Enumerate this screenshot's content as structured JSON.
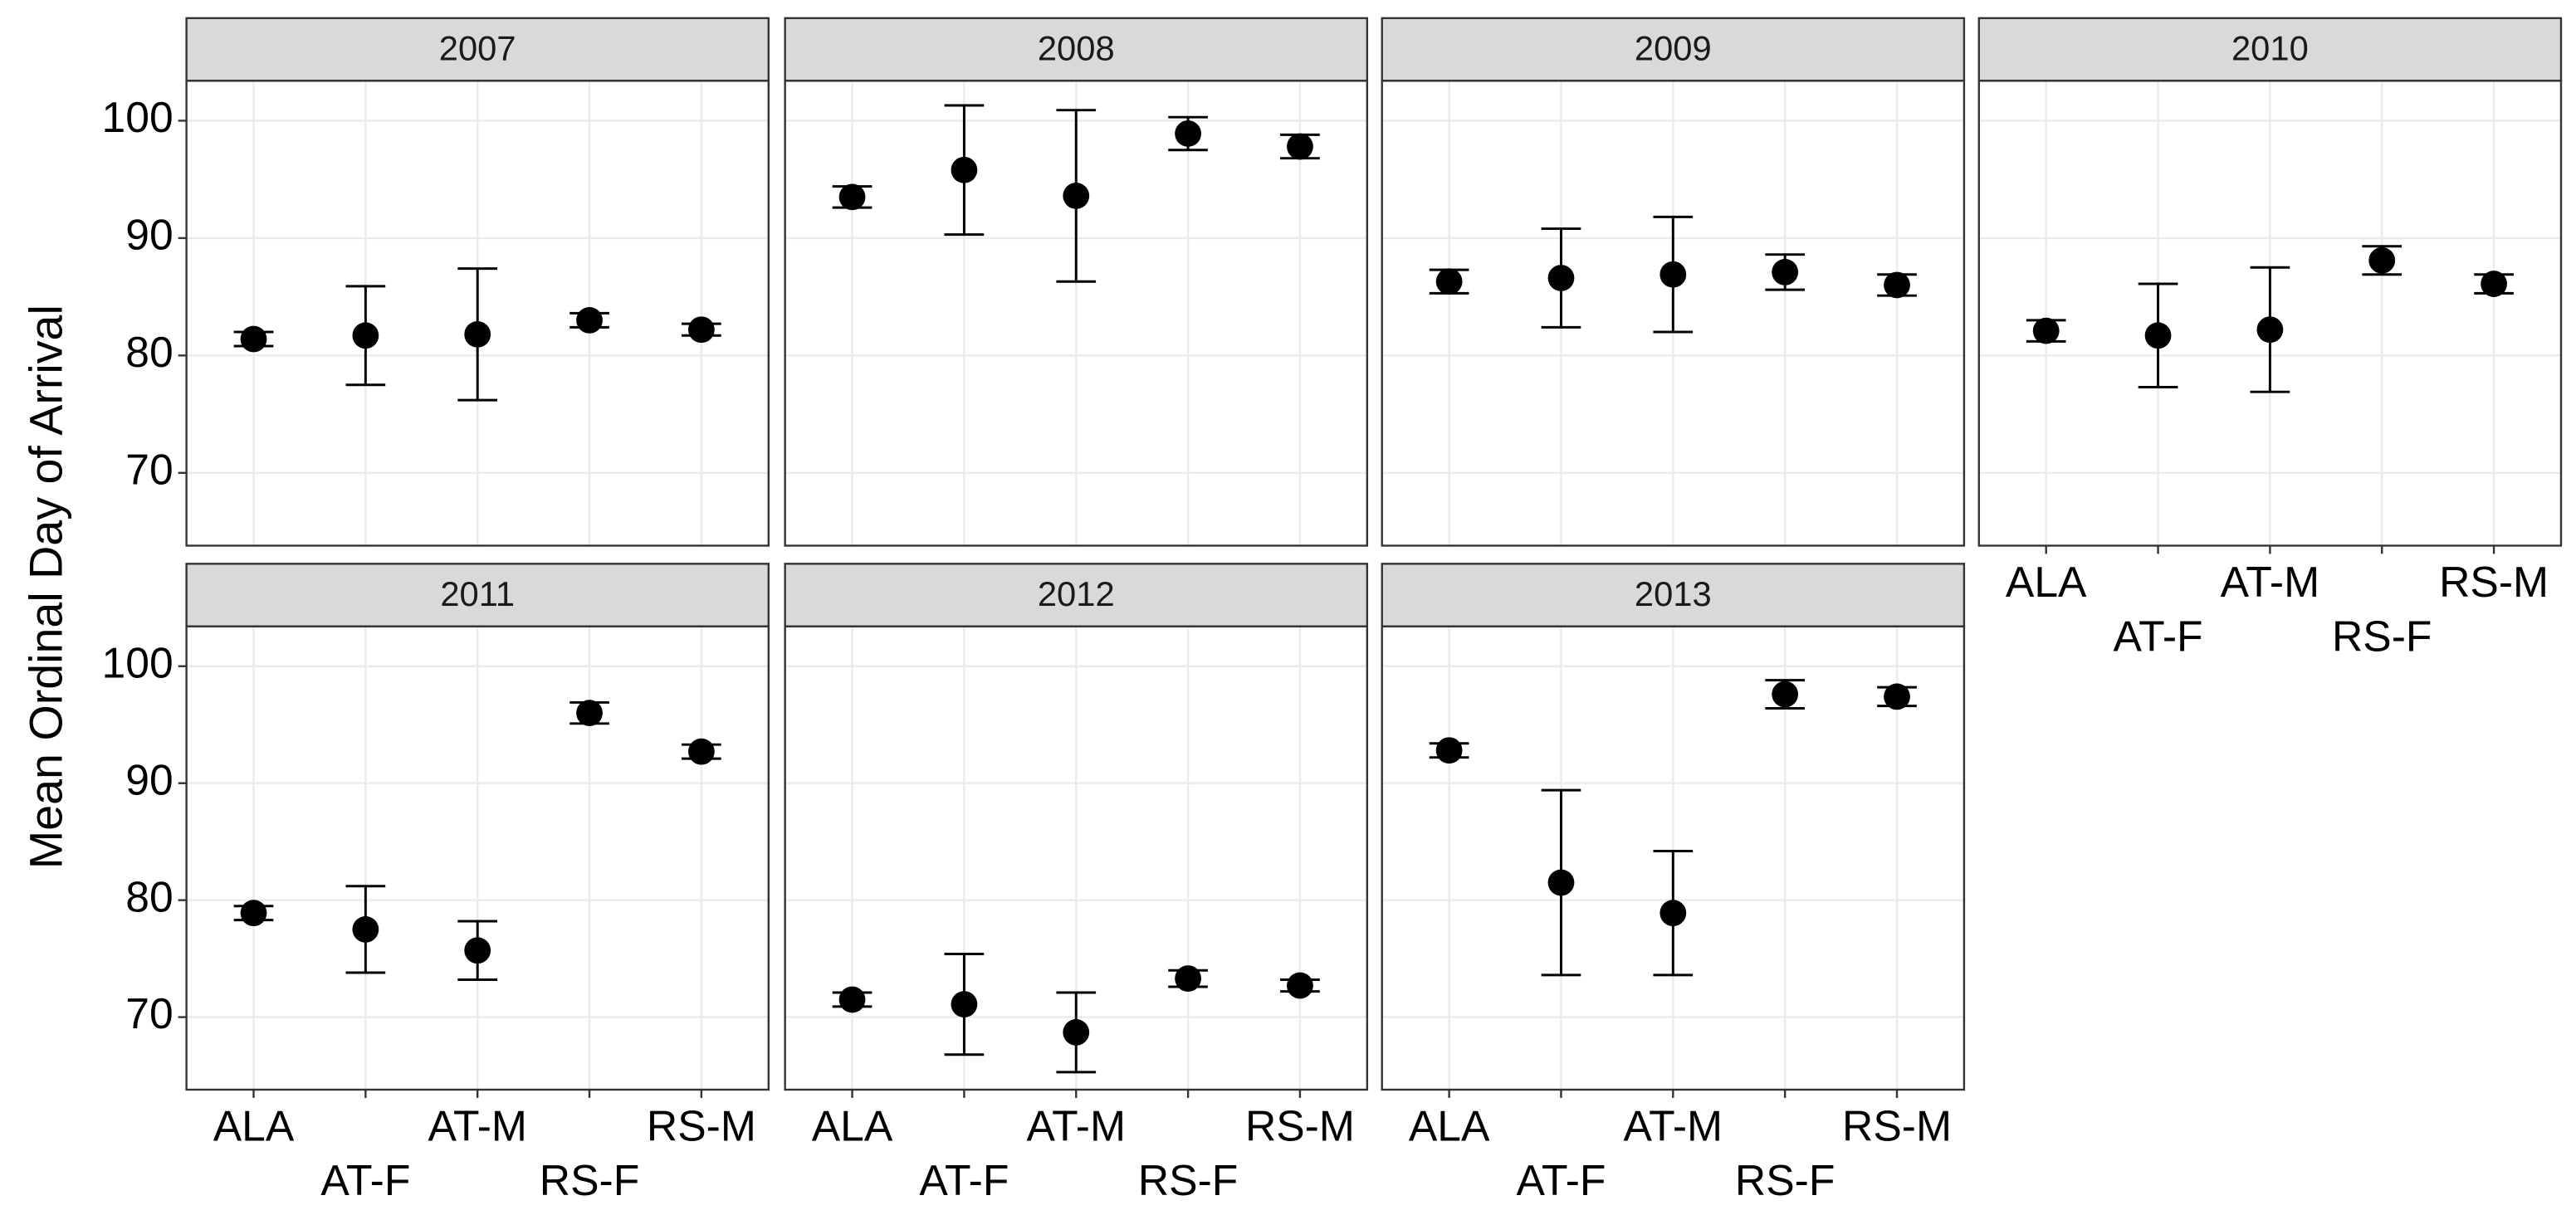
{
  "ylabel": "Mean Ordinal Day of Arrival",
  "chart_data": [
    {
      "type": "scatter",
      "title": "2007",
      "categories": [
        "ALA",
        "AT-F",
        "AT-M",
        "RS-F",
        "RS-M"
      ],
      "values": [
        81.4,
        81.7,
        81.8,
        83.0,
        82.2
      ],
      "errors": [
        0.6,
        4.2,
        5.6,
        0.6,
        0.5
      ],
      "ylim": [
        63.8,
        103.4
      ],
      "yticks": [
        70,
        80,
        90,
        100
      ],
      "color": "#000000",
      "grid": true
    },
    {
      "type": "scatter",
      "title": "2008",
      "categories": [
        "ALA",
        "AT-F",
        "AT-M",
        "RS-F",
        "RS-M"
      ],
      "values": [
        93.5,
        95.8,
        93.6,
        98.9,
        97.8
      ],
      "errors": [
        0.9,
        5.5,
        7.3,
        1.4,
        1.0
      ],
      "ylim": [
        63.8,
        103.4
      ],
      "yticks": [
        70,
        80,
        90,
        100
      ],
      "color": "#000000",
      "grid": true
    },
    {
      "type": "scatter",
      "title": "2009",
      "categories": [
        "ALA",
        "AT-F",
        "AT-M",
        "RS-F",
        "RS-M"
      ],
      "values": [
        86.3,
        86.6,
        86.9,
        87.1,
        86.0
      ],
      "errors": [
        1.0,
        4.2,
        4.9,
        1.5,
        0.9
      ],
      "ylim": [
        63.8,
        103.4
      ],
      "yticks": [
        70,
        80,
        90,
        100
      ],
      "color": "#000000",
      "grid": true
    },
    {
      "type": "scatter",
      "title": "2010",
      "categories": [
        "ALA",
        "AT-F",
        "AT-M",
        "RS-F",
        "RS-M"
      ],
      "values": [
        82.1,
        81.7,
        82.2,
        88.1,
        86.1
      ],
      "errors": [
        0.9,
        4.4,
        5.3,
        1.2,
        0.8
      ],
      "ylim": [
        63.8,
        103.4
      ],
      "yticks": [
        70,
        80,
        90,
        100
      ],
      "color": "#000000",
      "grid": true
    },
    {
      "type": "scatter",
      "title": "2011",
      "categories": [
        "ALA",
        "AT-F",
        "AT-M",
        "RS-F",
        "RS-M"
      ],
      "values": [
        78.9,
        77.5,
        75.7,
        96.0,
        92.7
      ],
      "errors": [
        0.6,
        3.7,
        2.5,
        0.9,
        0.6
      ],
      "ylim": [
        63.8,
        103.4
      ],
      "yticks": [
        70,
        80,
        90,
        100
      ],
      "color": "#000000",
      "grid": true
    },
    {
      "type": "scatter",
      "title": "2012",
      "categories": [
        "ALA",
        "AT-F",
        "AT-M",
        "RS-F",
        "RS-M"
      ],
      "values": [
        71.5,
        71.1,
        68.7,
        73.3,
        72.7
      ],
      "errors": [
        0.6,
        4.3,
        3.4,
        0.7,
        0.5
      ],
      "ylim": [
        63.8,
        103.4
      ],
      "yticks": [
        70,
        80,
        90,
        100
      ],
      "color": "#000000",
      "grid": true
    },
    {
      "type": "scatter",
      "title": "2013",
      "categories": [
        "ALA",
        "AT-F",
        "AT-M",
        "RS-F",
        "RS-M"
      ],
      "values": [
        92.8,
        81.5,
        78.9,
        97.6,
        97.4
      ],
      "errors": [
        0.6,
        7.9,
        5.3,
        1.2,
        0.8
      ],
      "ylim": [
        63.8,
        103.4
      ],
      "yticks": [
        70,
        80,
        90,
        100
      ],
      "color": "#000000",
      "grid": true
    }
  ]
}
